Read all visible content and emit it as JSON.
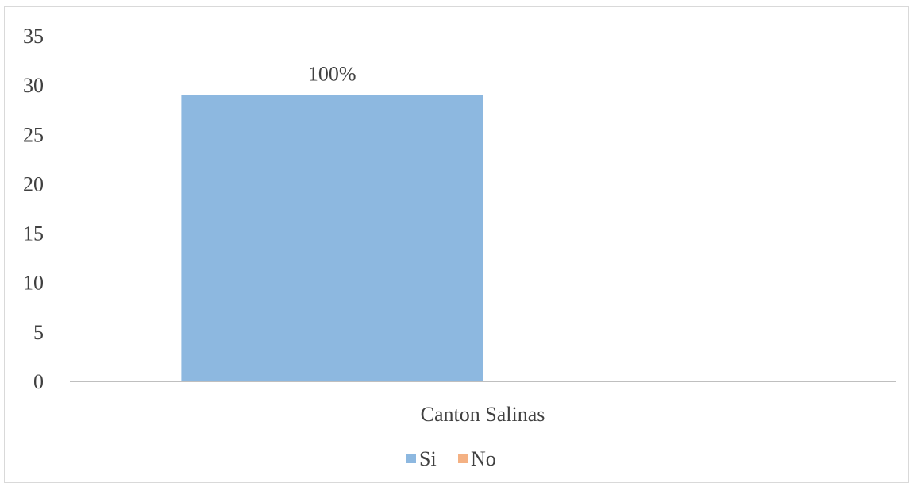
{
  "chart_data": {
    "type": "bar",
    "categories": [
      "Canton Salinas"
    ],
    "series": [
      {
        "name": "Si",
        "values": [
          29
        ],
        "color": "#8db8e0",
        "data_labels": [
          "100%"
        ]
      },
      {
        "name": "No",
        "values": [
          0
        ],
        "color": "#f4b183",
        "data_labels": [
          ""
        ]
      }
    ],
    "yticks": [
      "0",
      "5",
      "10",
      "15",
      "20",
      "25",
      "30",
      "35"
    ],
    "ylim": [
      0,
      35
    ],
    "grid": false,
    "legend": "bottom",
    "title": "",
    "xlabel": "",
    "ylabel": ""
  }
}
